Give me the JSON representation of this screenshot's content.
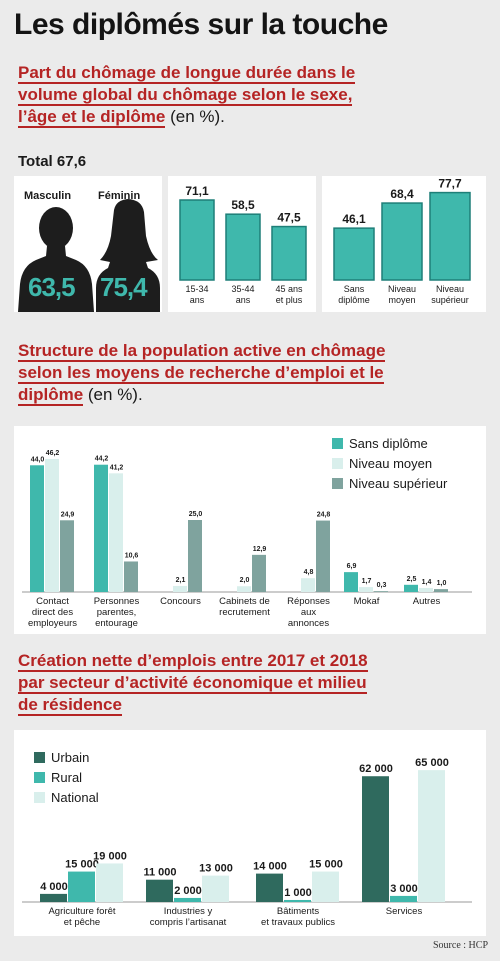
{
  "title": "Les diplômés sur la touche",
  "source": "Source : HCP",
  "colors": {
    "teal": "#3fb8ac",
    "teal_border": "#1e7f78",
    "dark_green": "#2f6a5e",
    "light_teal": "#d9efec",
    "grey_teal": "#7fa39e",
    "red": "#b52424"
  },
  "section1": {
    "title_lines": [
      "Part du chômage de longue durée dans le",
      "volume global du chômage selon le sexe,",
      "l’âge et le diplôme"
    ],
    "unit": " (en %).",
    "total_label": "Total 67,6",
    "gender": [
      {
        "label": "Masculin",
        "value": "63,5"
      },
      {
        "label": "Féminin",
        "value": "75,4"
      }
    ]
  },
  "section2": {
    "title_lines": [
      "Structure de la population active en chômage",
      "selon les moyens de recherche d’emploi et le",
      "diplôme"
    ],
    "unit": " (en %)."
  },
  "section3": {
    "title_lines": [
      "Création nette d’emplois entre 2017 et 2018",
      "par secteur d’activité économique et milieu",
      "de résidence"
    ]
  },
  "chart_data": [
    {
      "type": "bar",
      "categories": [
        [
          "15-34",
          "ans"
        ],
        [
          "35-44",
          "ans"
        ],
        [
          "45 ans",
          "et plus"
        ]
      ],
      "values": [
        71.1,
        58.5,
        47.5
      ],
      "labels": [
        "71,1",
        "58,5",
        "47,5"
      ],
      "ylim": [
        0,
        80
      ]
    },
    {
      "type": "bar",
      "categories": [
        [
          "Sans",
          "diplôme"
        ],
        [
          "Niveau",
          "moyen"
        ],
        [
          "Niveau",
          "supérieur"
        ]
      ],
      "values": [
        46.1,
        68.4,
        77.7
      ],
      "labels": [
        "46,1",
        "68,4",
        "77,7"
      ],
      "ylim": [
        0,
        80
      ]
    },
    {
      "type": "bar",
      "categories": [
        [
          "Contact",
          "direct des",
          "employeurs"
        ],
        [
          "Personnes",
          "parentes,",
          "entourage"
        ],
        [
          "Concours"
        ],
        [
          "Cabinets de",
          "recrutement"
        ],
        [
          "Réponses",
          "aux",
          "annonces"
        ],
        [
          "Mokaf"
        ],
        [
          "Autres"
        ]
      ],
      "series": [
        {
          "name": "Sans diplôme",
          "values": [
            44.0,
            44.2,
            0,
            0,
            0,
            6.9,
            2.5
          ],
          "labels": [
            "44,0",
            "44,2",
            "",
            "",
            "",
            "6,9",
            "2,5"
          ]
        },
        {
          "name": "Niveau moyen",
          "values": [
            46.2,
            41.2,
            2.1,
            2.0,
            4.8,
            1.7,
            1.4
          ],
          "labels": [
            "46,2",
            "41,2",
            "2,1",
            "2,0",
            "4,8",
            "1,7",
            "1,4"
          ]
        },
        {
          "name": "Niveau supérieur",
          "values": [
            24.9,
            10.6,
            25.0,
            12.9,
            24.8,
            0.3,
            1.0
          ],
          "labels": [
            "24,9",
            "10,6",
            "25,0",
            "12,9",
            "24,8",
            "0,3",
            "1,0"
          ]
        }
      ],
      "legend": "top-right",
      "ylim": [
        0,
        50
      ]
    },
    {
      "type": "bar",
      "categories": [
        [
          "Agriculture forêt",
          "et pêche"
        ],
        [
          "Industries y",
          "compris l’artisanat"
        ],
        [
          "Bâtiments",
          "et travaux publics"
        ],
        [
          "Services"
        ]
      ],
      "series": [
        {
          "name": "Urbain",
          "values": [
            4000,
            11000,
            14000,
            62000
          ],
          "labels": [
            "4 000",
            "11 000",
            "14 000",
            "62 000"
          ]
        },
        {
          "name": "Rural",
          "values": [
            15000,
            2000,
            1000,
            3000
          ],
          "labels": [
            "15 000",
            "2 000",
            "1 000",
            "3 000"
          ]
        },
        {
          "name": "National",
          "values": [
            19000,
            13000,
            15000,
            65000
          ],
          "labels": [
            "19 000",
            "13 000",
            "15 000",
            "65 000"
          ]
        }
      ],
      "legend": "top-left",
      "ylim": [
        0,
        70000
      ]
    }
  ]
}
